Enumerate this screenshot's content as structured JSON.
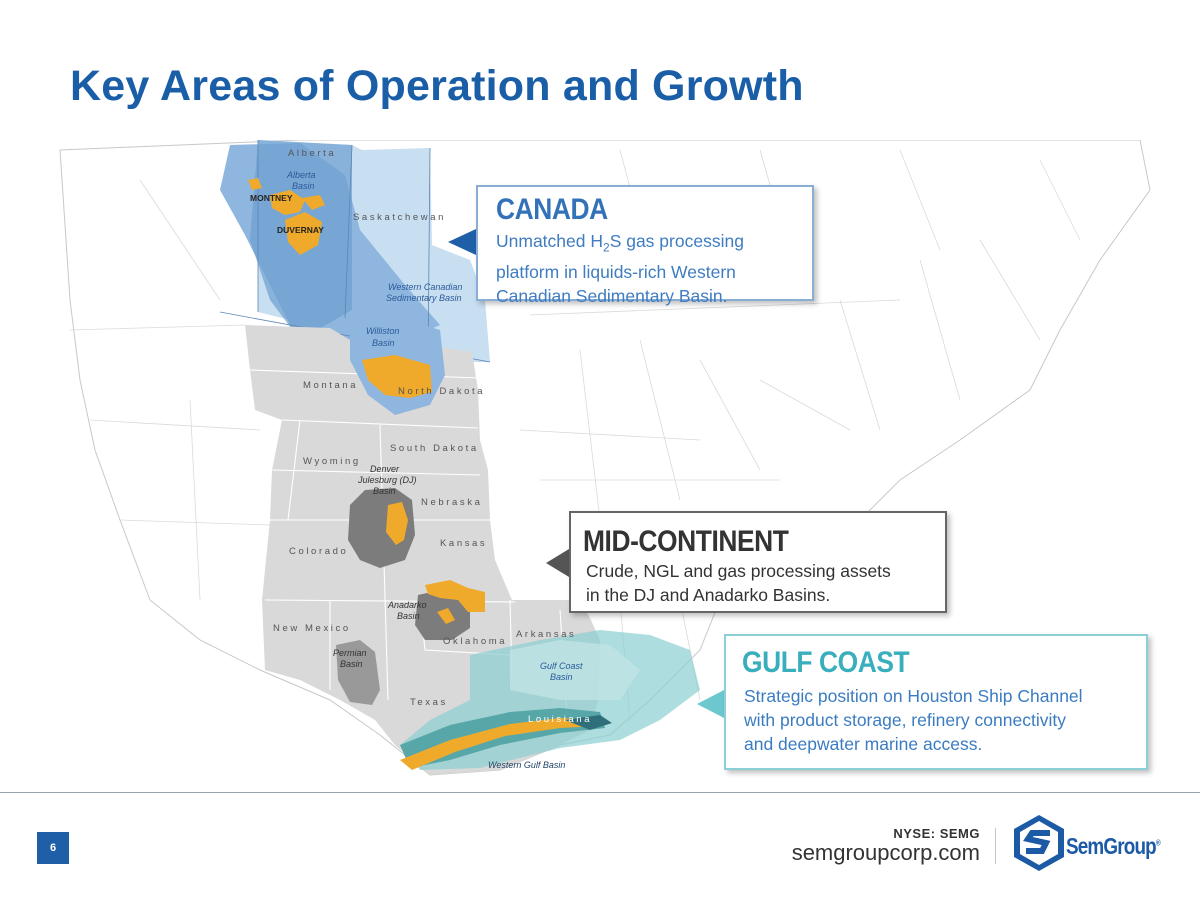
{
  "slide": {
    "title": "Key Areas of Operation and Growth",
    "page_number": "6"
  },
  "map": {
    "provinces": {
      "alberta": "Alberta",
      "saskatchewan": "Saskatchewan"
    },
    "states": {
      "montana": "Montana",
      "north_dakota": "North Dakota",
      "south_dakota": "South Dakota",
      "wyoming": "Wyoming",
      "nebraska": "Nebraska",
      "colorado": "Colorado",
      "kansas": "Kansas",
      "new_mexico": "New Mexico",
      "oklahoma": "Oklahoma",
      "arkansas": "Arkansas",
      "texas": "Texas",
      "louisiana": "Louisiana"
    },
    "basins": {
      "alberta_l1": "Alberta",
      "alberta_l2": "Basin",
      "wcsb_l1": "Western Canadian",
      "wcsb_l2": "Sedimentary Basin",
      "williston_l1": "Williston",
      "williston_l2": "Basin",
      "dj_l1": "Denver",
      "dj_l2": "Julesburg (DJ)",
      "dj_l3": "Basin",
      "anadarko_l1": "Anadarko",
      "anadarko_l2": "Basin",
      "permian_l1": "Permian",
      "permian_l2": "Basin",
      "gulf_coast_l1": "Gulf Coast",
      "gulf_coast_l2": "Basin",
      "western_gulf": "Western Gulf Basin"
    },
    "plays": {
      "montney": "MONTNEY",
      "duvernay": "DUVERNAY"
    },
    "colors": {
      "canada_region": "#8fb6de",
      "us_region": "#d9d9d9",
      "asset_orange": "#f0aa2b",
      "mid_basin_gray": "#7c7c7c",
      "gulf_teal": "#8ccfd1"
    }
  },
  "callouts": {
    "canada": {
      "title": "CANADA",
      "line1_prefix": "Unmatched H",
      "line1_sub": "2",
      "line1_suffix": "S gas processing",
      "line2": "platform in liquids-rich Western",
      "line3": "Canadian Sedimentary Basin."
    },
    "mid_continent": {
      "title": "MID-CONTINENT",
      "line1": "Crude, NGL and gas processing assets",
      "line2": "in the DJ and Anadarko Basins."
    },
    "gulf_coast": {
      "title": "GULF COAST",
      "line1": "Strategic position on Houston Ship Channel",
      "line2": "with product storage, refinery connectivity",
      "line3": "and deepwater marine access."
    }
  },
  "footer": {
    "ticker": "NYSE: SEMG",
    "website": "semgroupcorp.com",
    "logo_text": "SemGroup",
    "logo_mark": "®",
    "brand_color": "#1c5aa6"
  }
}
